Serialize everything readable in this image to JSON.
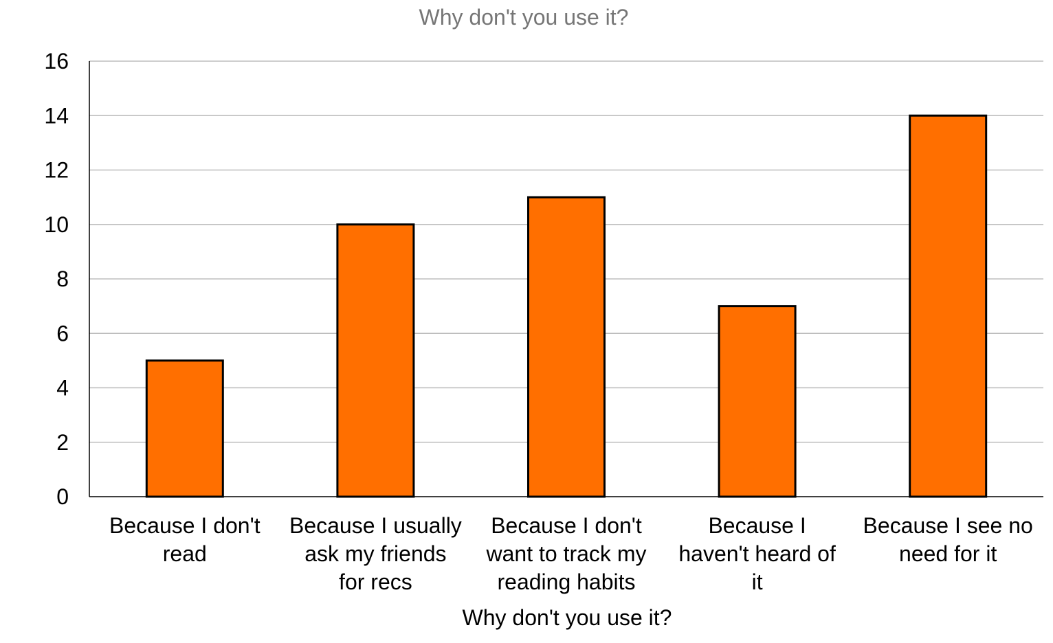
{
  "chart_data": {
    "type": "bar",
    "title": "Why don't you use it?",
    "xlabel": "Why don't you use it?",
    "ylabel": "",
    "categories": [
      [
        "Because I don't",
        "read"
      ],
      [
        "Because I usually",
        "ask my friends",
        "for recs"
      ],
      [
        "Because I don't",
        "want to track my",
        "reading habits"
      ],
      [
        "Because I",
        "haven't heard of",
        "it"
      ],
      [
        "Because I see no",
        "need for it"
      ]
    ],
    "values": [
      5,
      10,
      11,
      7,
      14
    ],
    "ylim": [
      0,
      16
    ],
    "yticks": [
      0,
      2,
      4,
      6,
      8,
      10,
      12,
      14,
      16
    ],
    "grid": true,
    "legend": "none",
    "colors": {
      "bar": "#ff6f00",
      "bar_border": "#000000",
      "grid": "#bdbdbd",
      "axis": "#000000"
    }
  }
}
